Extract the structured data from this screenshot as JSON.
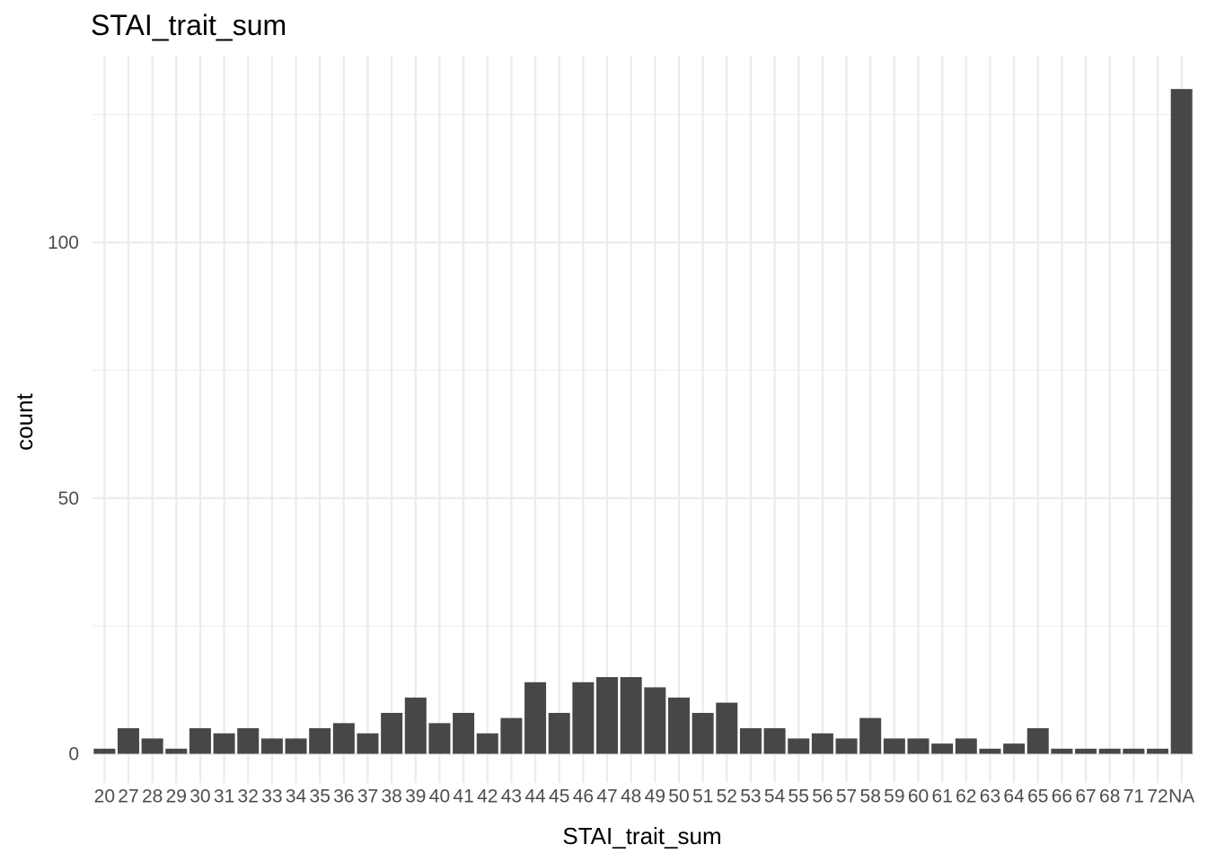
{
  "chart_data": {
    "type": "bar",
    "title": "STAI_trait_sum",
    "xlabel": "STAI_trait_sum",
    "ylabel": "count",
    "categories": [
      "20",
      "27",
      "28",
      "29",
      "30",
      "31",
      "32",
      "33",
      "34",
      "35",
      "36",
      "37",
      "38",
      "39",
      "40",
      "41",
      "42",
      "43",
      "44",
      "45",
      "46",
      "47",
      "48",
      "49",
      "50",
      "51",
      "52",
      "53",
      "54",
      "55",
      "56",
      "57",
      "58",
      "59",
      "60",
      "61",
      "62",
      "63",
      "64",
      "65",
      "66",
      "67",
      "68",
      "71",
      "72",
      "NA"
    ],
    "values": [
      1,
      5,
      3,
      1,
      5,
      4,
      5,
      3,
      3,
      5,
      6,
      4,
      8,
      11,
      6,
      8,
      4,
      7,
      14,
      8,
      14,
      15,
      15,
      13,
      11,
      8,
      10,
      5,
      5,
      3,
      4,
      3,
      7,
      3,
      3,
      2,
      3,
      1,
      2,
      5,
      1,
      1,
      1,
      1,
      1,
      130
    ],
    "ylim": [
      0,
      137
    ],
    "yticks": [
      0,
      50,
      100
    ],
    "grid": true,
    "bar_color": "#474747",
    "background": "#ffffff",
    "grid_color": "#ebebeb"
  }
}
